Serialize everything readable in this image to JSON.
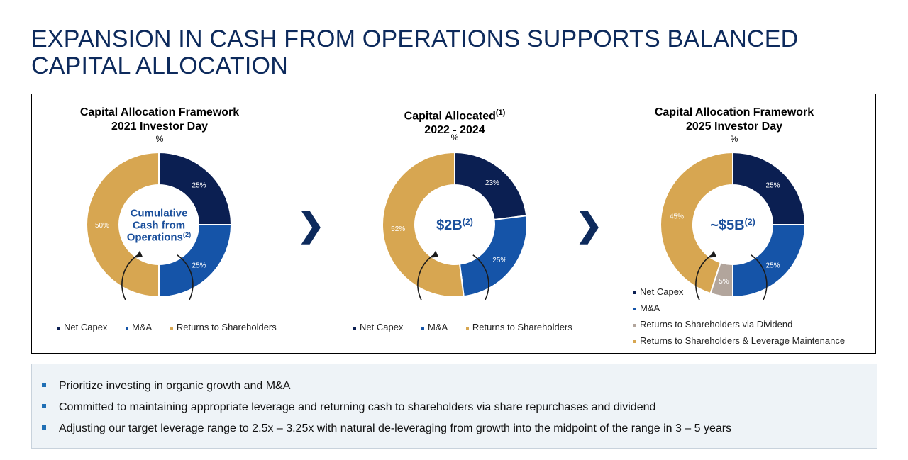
{
  "title_line1": "EXPANSION IN CASH FROM OPERATIONS SUPPORTS BALANCED",
  "title_line2": "CAPITAL ALLOCATION",
  "colors": {
    "net_capex": "#0b1f52",
    "ma": "#1554a8",
    "dividend": "#b2a59c",
    "returns": "#d7a651",
    "center_text": "#1a4f9c"
  },
  "chart_data": [
    {
      "type": "pie",
      "title_line1": "Capital Allocation Framework",
      "title_line2": "2021 Investor Day",
      "unit": "%",
      "center_text": [
        "Cumulative",
        "Cash from",
        "Operations"
      ],
      "center_sup": "(2)",
      "slices": [
        {
          "name": "Net Capex",
          "value": 25,
          "label": "25%"
        },
        {
          "name": "M&A",
          "value": 25,
          "label": "25%"
        },
        {
          "name": "Returns to Shareholders",
          "value": 50,
          "label": "50%"
        }
      ],
      "legend": [
        "Net Capex",
        "M&A",
        "Returns to Shareholders"
      ]
    },
    {
      "type": "pie",
      "title_line1": "Capital Allocated",
      "title_sup": "(1)",
      "title_line2": "2022 - 2024",
      "unit": "%",
      "center_text": [
        "$2B"
      ],
      "center_sup": "(2)",
      "slices": [
        {
          "name": "Net Capex",
          "value": 23,
          "label": "23%"
        },
        {
          "name": "M&A",
          "value": 25,
          "label": "25%"
        },
        {
          "name": "Returns to Shareholders",
          "value": 52,
          "label": "52%"
        }
      ],
      "legend": [
        "Net Capex",
        "M&A",
        "Returns to Shareholders"
      ]
    },
    {
      "type": "pie",
      "title_line1": "Capital Allocation Framework",
      "title_line2": "2025 Investor Day",
      "unit": "%",
      "center_text": [
        "~$5B"
      ],
      "center_sup": "(2)",
      "slices": [
        {
          "name": "Net Capex",
          "value": 25,
          "label": "25%"
        },
        {
          "name": "M&A",
          "value": 25,
          "label": "25%"
        },
        {
          "name": "Returns to Shareholders via Dividend",
          "value": 5,
          "label": "5%"
        },
        {
          "name": "Returns to Shareholders & Leverage Maintenance",
          "value": 45,
          "label": "45%"
        }
      ],
      "legend": [
        "Net Capex",
        "M&A",
        "Returns to Shareholders via Dividend",
        "Returns to Shareholders & Leverage Maintenance"
      ]
    }
  ],
  "chevrons": [
    "❯",
    "❯"
  ],
  "bullets": [
    "Prioritize investing in organic growth and M&A",
    "Committed to maintaining appropriate leverage and returning cash to shareholders via share repurchases and dividend",
    "Adjusting our target leverage range to 2.5x – 3.25x with natural de-leveraging from growth into the midpoint of the range in 3 – 5 years"
  ]
}
